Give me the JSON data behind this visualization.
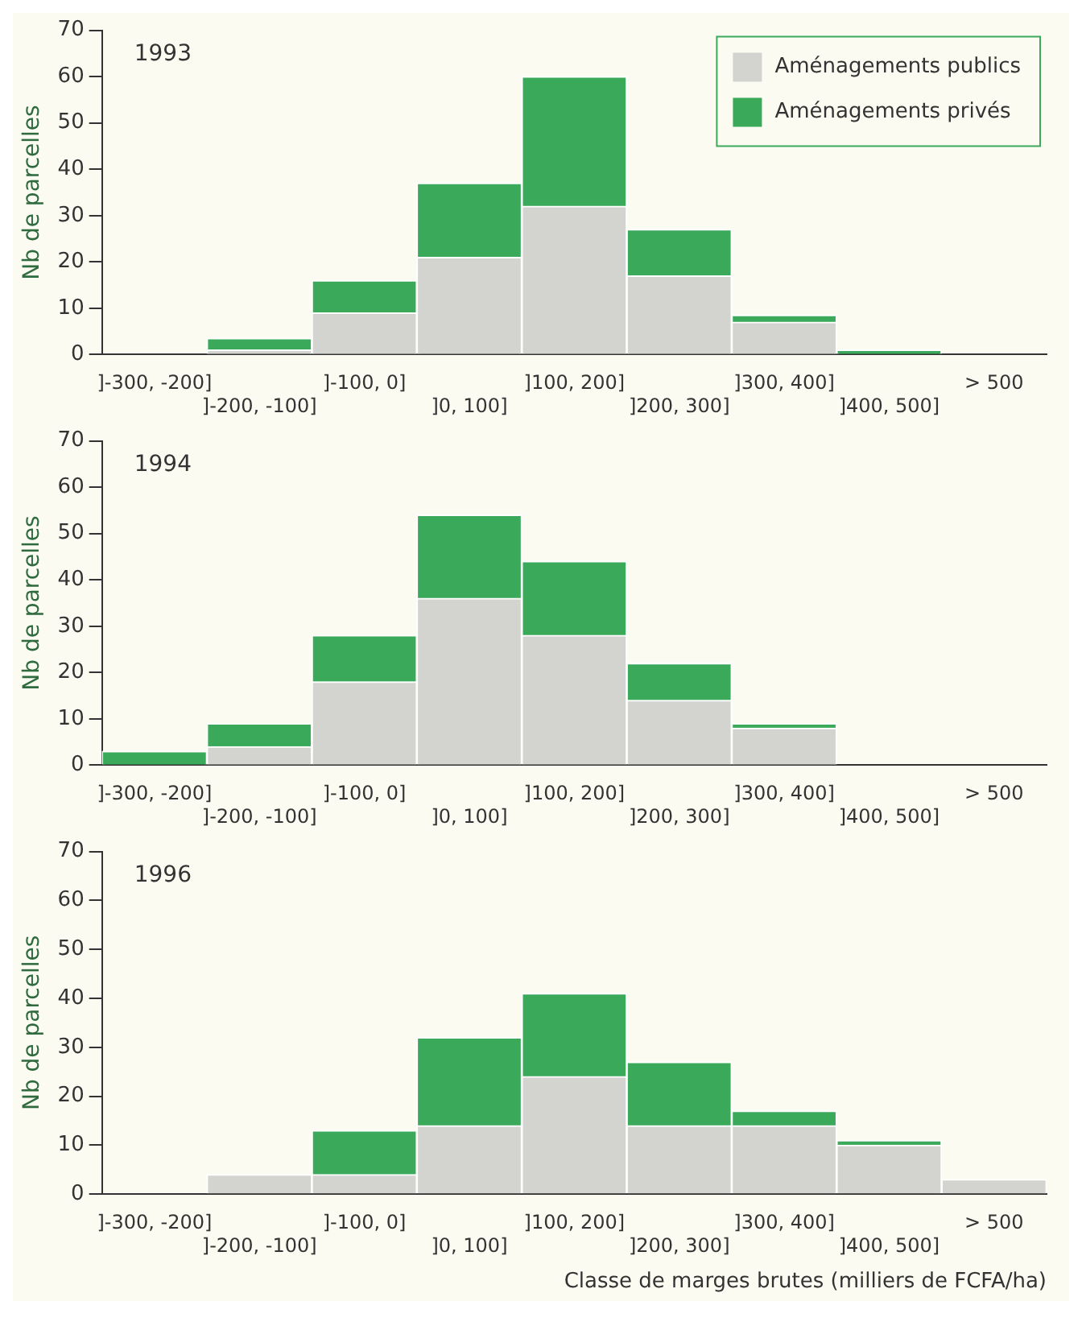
{
  "chart_data": [
    {
      "type": "bar",
      "stacked": true,
      "ylabel": "Nb de parcelles",
      "annotations": [
        "1993"
      ],
      "categories": [
        "]-300, -200]",
        "]-200, -100]",
        "]-100, 0]",
        "]0, 100]",
        "]100, 200]",
        "]200, 300]",
        "]300, 400]",
        "]400, 500]",
        "> 500"
      ],
      "series": [
        {
          "name": "Aménagements publics",
          "color": "#d3d3cf",
          "values": [
            0,
            1,
            9,
            21,
            32,
            17,
            7,
            0,
            0
          ]
        },
        {
          "name": "Aménagements privés",
          "color": "#3aaa5a",
          "values": [
            0,
            2.5,
            7,
            16,
            28,
            10,
            1.5,
            1,
            0
          ]
        }
      ],
      "ylim": [
        0,
        70
      ],
      "yticks": [
        0,
        10,
        20,
        30,
        40,
        50,
        60,
        70
      ],
      "grid": false,
      "legend": "top right"
    },
    {
      "type": "bar",
      "stacked": true,
      "ylabel": "Nb de parcelles",
      "annotations": [
        "1994"
      ],
      "categories": [
        "]-300, -200]",
        "]-200, -100]",
        "]-100, 0]",
        "]0, 100]",
        "]100, 200]",
        "]200, 300]",
        "]300, 400]",
        "]400, 500]",
        "> 500"
      ],
      "series": [
        {
          "color": "#d3d3cf",
          "values": [
            0,
            4,
            18,
            36,
            28,
            14,
            8,
            0,
            0
          ]
        },
        {
          "color": "#3aaa5a",
          "values": [
            3,
            5,
            10,
            18,
            16,
            8,
            1,
            0,
            0
          ]
        }
      ],
      "ylim": [
        0,
        70
      ],
      "yticks": [
        0,
        10,
        20,
        30,
        40,
        50,
        60,
        70
      ],
      "grid": false
    },
    {
      "type": "bar",
      "stacked": true,
      "ylabel": "Nb de parcelles",
      "xlabel": "Classe de marges brutes (milliers de FCFA/ha)",
      "annotations": [
        "1996"
      ],
      "categories": [
        "]-300, -200]",
        "]-200, -100]",
        "]-100, 0]",
        "]0, 100]",
        "]100, 200]",
        "]200, 300]",
        "]300, 400]",
        "]400, 500]",
        "> 500"
      ],
      "series": [
        {
          "color": "#d3d3cf",
          "values": [
            0,
            4,
            4,
            14,
            24,
            14,
            14,
            10,
            3
          ]
        },
        {
          "color": "#3aaa5a",
          "values": [
            0,
            0,
            9,
            18,
            17,
            13,
            3,
            1,
            0
          ]
        }
      ],
      "ylim": [
        0,
        70
      ],
      "yticks": [
        0,
        10,
        20,
        30,
        40,
        50,
        60,
        70
      ],
      "grid": false
    }
  ]
}
